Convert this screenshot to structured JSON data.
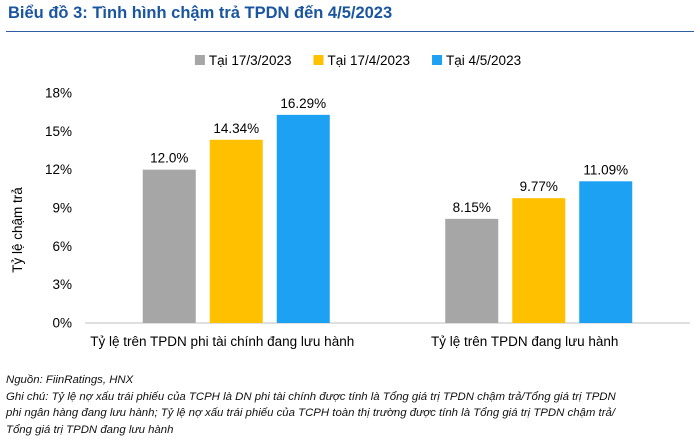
{
  "title": "Biểu đồ 3: Tình hình chậm trả TPDN đến 4/5/2023",
  "chart_data": {
    "type": "bar",
    "categories": [
      "Tỷ lệ trên TPDN phi tài chính đang lưu hành",
      "Tỷ lệ trên TPDN đang lưu hành"
    ],
    "series": [
      {
        "name": "Tại 17/3/2023",
        "values": [
          12.0,
          8.15
        ],
        "labels": [
          "12.0%",
          "8.15%"
        ],
        "color": "#a6a6a6"
      },
      {
        "name": "Tại 17/4/2023",
        "values": [
          14.34,
          9.77
        ],
        "labels": [
          "14.34%",
          "9.77%"
        ],
        "color": "#ffc000"
      },
      {
        "name": "Tại 4/5/2023",
        "values": [
          16.29,
          11.09
        ],
        "labels": [
          "16.29%",
          "11.09%"
        ],
        "color": "#1da1f2"
      }
    ],
    "ylabel": "Tỷ lệ chậm trả",
    "ylim": [
      0,
      18
    ],
    "yticks": [
      "0%",
      "3%",
      "6%",
      "9%",
      "12%",
      "15%",
      "18%"
    ],
    "legend_position": "top",
    "grid": false
  },
  "notes": {
    "source": "Nguồn: FiinRatings, HNX",
    "lines": [
      "Ghi chú: Tỷ lệ nợ xấu trái phiếu của TCPH là DN phi tài chính được tính là Tổng giá trị TPDN chậm trả/Tổng giá trị TPDN",
      "phi ngân hàng đang lưu hành; Tỷ lệ nợ xấu trái phiếu của TCPH toàn thị trường được tính là Tổng giá trị TPDN chậm trả/",
      "Tổng giá trị TPDN đang lưu hành"
    ]
  }
}
